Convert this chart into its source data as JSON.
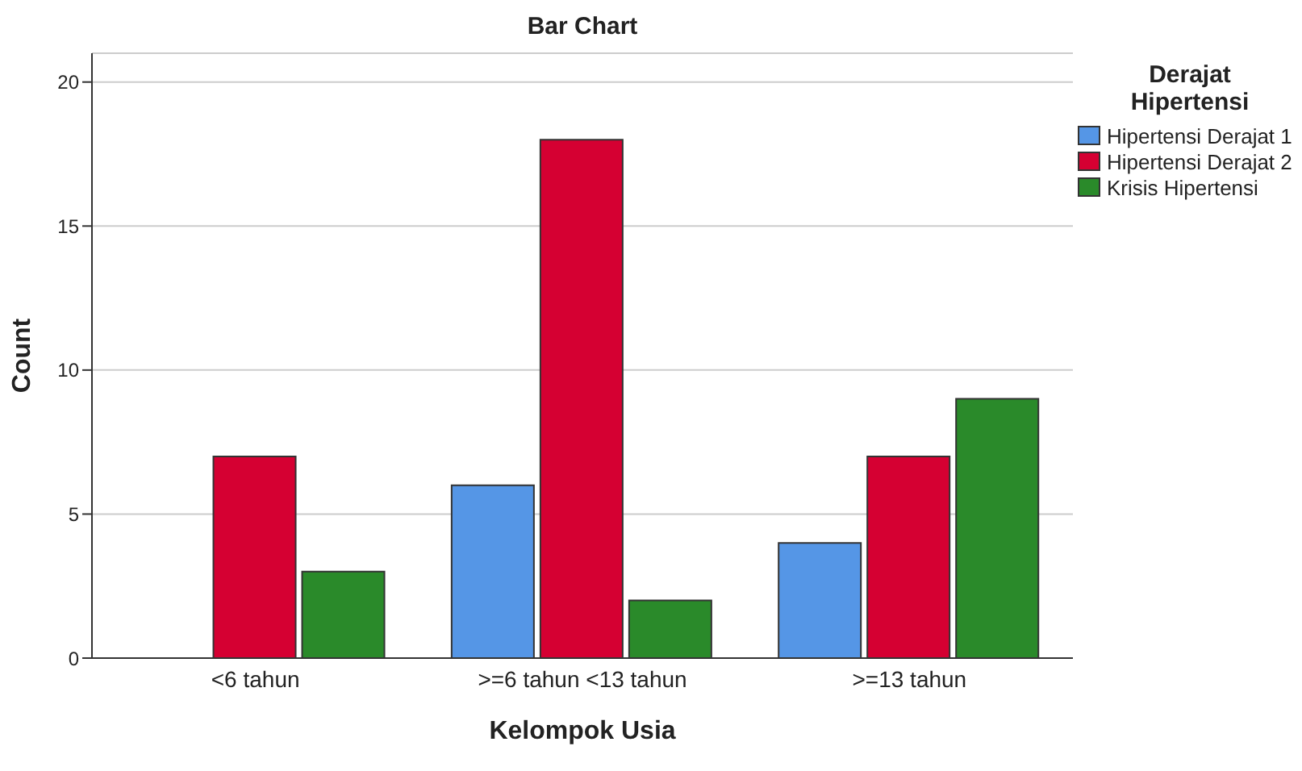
{
  "chart_data": {
    "type": "bar",
    "title": "Bar Chart",
    "xlabel": "Kelompok Usia",
    "ylabel": "Count",
    "legend_title": "Derajat Hipertensi",
    "categories": [
      "<6 tahun",
      ">=6 tahun <13 tahun",
      ">=13 tahun"
    ],
    "series": [
      {
        "name": "Hipertensi Derajat 1",
        "color": "#5596e6",
        "values": [
          null,
          6,
          4
        ]
      },
      {
        "name": "Hipertensi Derajat 2",
        "color": "#d50032",
        "values": [
          7,
          18,
          7
        ]
      },
      {
        "name": "Krisis Hipertensi",
        "color": "#2a8a2a",
        "values": [
          3,
          2,
          9
        ]
      }
    ],
    "ylim": [
      0,
      21
    ],
    "yticks": [
      0,
      5,
      10,
      15,
      20
    ],
    "grid": "y",
    "legend": "top right"
  }
}
